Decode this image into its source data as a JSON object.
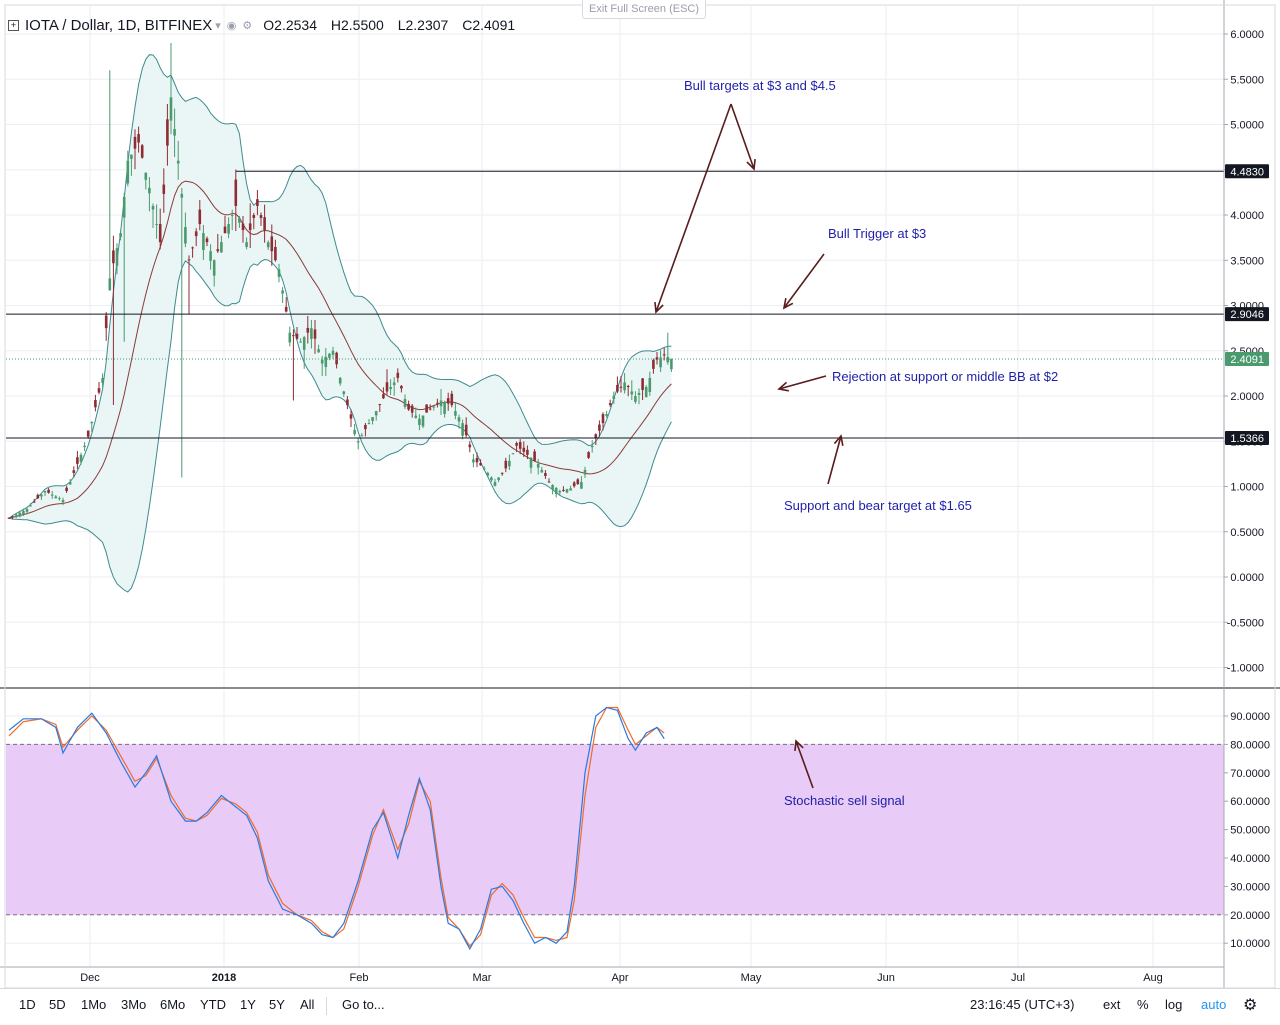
{
  "header": {
    "symbol": "IOTA / Dollar, 1D, BITFINEX",
    "open": "O2.2534",
    "high": "H2.5500",
    "low": "L2.2307",
    "close": "C2.4091"
  },
  "exit_fullscreen": "Exit Full Screen (ESC)",
  "bottom_bar": {
    "ranges": [
      "1D",
      "5D",
      "1Mo",
      "3Mo",
      "6Mo",
      "YTD",
      "1Y",
      "5Y",
      "All"
    ],
    "goto": "Go to...",
    "clock": "23:16:45 (UTC+3)",
    "ext": "ext",
    "percent": "%",
    "log": "log",
    "auto": "auto"
  },
  "colors": {
    "up": "#4a9a6e",
    "down": "#8e2b33",
    "band_fill": "#eaf6f6",
    "band_line": "#3f8a90",
    "basis": "#8b3a3a",
    "stoch_k": "#2a7ae0",
    "stoch_d": "#ef6c2a",
    "stoch_zone": "#e8cbf7",
    "annotation_text": "#1f1fa8",
    "arrow": "#5a1c1c"
  },
  "chart_data": [
    {
      "type": "candlestick",
      "title": "IOTA / Dollar, 1D, BITFINEX",
      "x_ticks": [
        "Dec",
        "2018",
        "Feb",
        "Mar",
        "Apr",
        "May",
        "Jun",
        "Jul",
        "Aug"
      ],
      "y_ticks": [
        "6.0000",
        "5.5000",
        "5.0000",
        "4.5000",
        "4.0000",
        "3.5000",
        "3.0000",
        "2.5000",
        "2.0000",
        "1.5000",
        "1.0000",
        "0.5000",
        "0.0000",
        "-0.5000",
        "-1.0000"
      ],
      "ylim": [
        -1.2,
        6.3
      ],
      "horizontal_lines": [
        {
          "value": 4.483,
          "label": "4.4830"
        },
        {
          "value": 2.9046,
          "label": "2.9046"
        },
        {
          "value": 1.5366,
          "label": "1.5366"
        }
      ],
      "last_price": {
        "value": 2.4091,
        "label": "2.4091"
      },
      "annotations": [
        {
          "text": "Bull targets at $3 and $4.5"
        },
        {
          "text": "Bull Trigger at $3"
        },
        {
          "text": "Rejection at support or middle BB at $2"
        },
        {
          "text": "Support and bear target at $1.65"
        }
      ],
      "indicators": [
        "Bollinger Bands (20)"
      ],
      "key_path": [
        [
          0,
          0.65
        ],
        [
          5,
          0.75
        ],
        [
          10,
          0.95
        ],
        [
          15,
          0.85
        ],
        [
          22,
          1.55
        ],
        [
          26,
          2.2
        ],
        [
          28,
          3.3
        ],
        [
          31,
          3.8
        ],
        [
          33,
          4.6
        ],
        [
          36,
          4.8
        ],
        [
          39,
          4.3
        ],
        [
          42,
          3.7
        ],
        [
          45,
          5.3
        ],
        [
          47,
          4.6
        ],
        [
          50,
          3.5
        ],
        [
          53,
          3.9
        ],
        [
          57,
          3.5
        ],
        [
          60,
          3.8
        ],
        [
          63,
          4.1
        ],
        [
          66,
          3.7
        ],
        [
          69,
          4.1
        ],
        [
          72,
          3.7
        ],
        [
          75,
          3.4
        ],
        [
          78,
          2.7
        ],
        [
          81,
          2.6
        ],
        [
          84,
          2.75
        ],
        [
          87,
          2.4
        ],
        [
          90,
          2.5
        ],
        [
          92,
          2.2
        ],
        [
          95,
          1.75
        ],
        [
          97,
          1.5
        ],
        [
          100,
          1.7
        ],
        [
          103,
          1.9
        ],
        [
          105,
          2.05
        ],
        [
          108,
          2.2
        ],
        [
          111,
          1.85
        ],
        [
          114,
          1.75
        ],
        [
          117,
          1.85
        ],
        [
          120,
          1.95
        ],
        [
          123,
          1.9
        ],
        [
          126,
          1.7
        ],
        [
          129,
          1.3
        ],
        [
          132,
          1.2
        ],
        [
          135,
          1.05
        ],
        [
          138,
          1.2
        ],
        [
          141,
          1.45
        ],
        [
          144,
          1.35
        ],
        [
          147,
          1.25
        ],
        [
          150,
          1.05
        ],
        [
          153,
          0.95
        ],
        [
          156,
          0.98
        ],
        [
          159,
          1.05
        ],
        [
          162,
          1.45
        ],
        [
          165,
          1.7
        ],
        [
          168,
          2.0
        ],
        [
          171,
          2.15
        ],
        [
          174,
          2.0
        ],
        [
          177,
          2.1
        ],
        [
          180,
          2.4
        ],
        [
          182,
          2.45
        ],
        [
          184,
          2.41
        ]
      ]
    },
    {
      "type": "line",
      "title": "Stochastic",
      "y_ticks": [
        "90.0000",
        "80.0000",
        "70.0000",
        "60.0000",
        "50.0000",
        "40.0000",
        "30.0000",
        "20.0000",
        "10.0000"
      ],
      "ylim": [
        2,
        100
      ],
      "levels": [
        80,
        20
      ],
      "annotations": [
        {
          "text": "Stochastic sell signal"
        }
      ],
      "series": [
        {
          "values_path": [
            [
              0,
              85
            ],
            [
              4,
              89
            ],
            [
              9,
              89
            ],
            [
              13,
              86
            ],
            [
              15,
              77
            ],
            [
              19,
              86
            ],
            [
              23,
              91
            ],
            [
              27,
              84
            ],
            [
              31,
              74
            ],
            [
              35,
              65
            ],
            [
              38,
              70
            ],
            [
              41,
              76
            ],
            [
              45,
              60
            ],
            [
              49,
              53
            ],
            [
              52,
              53
            ],
            [
              55,
              56
            ],
            [
              59,
              62
            ],
            [
              63,
              58
            ],
            [
              66,
              55
            ],
            [
              69,
              47
            ],
            [
              72,
              32
            ],
            [
              76,
              22
            ],
            [
              80,
              20
            ],
            [
              84,
              17
            ],
            [
              87,
              13
            ],
            [
              90,
              12
            ],
            [
              93,
              17
            ],
            [
              97,
              32
            ],
            [
              101,
              50
            ],
            [
              104,
              56
            ],
            [
              108,
              40
            ],
            [
              111,
              55
            ],
            [
              114,
              68
            ],
            [
              117,
              57
            ],
            [
              120,
              30
            ],
            [
              122,
              17
            ],
            [
              125,
              15
            ],
            [
              128,
              8
            ],
            [
              131,
              15
            ],
            [
              134,
              29
            ],
            [
              137,
              30
            ],
            [
              140,
              25
            ],
            [
              143,
              17
            ],
            [
              146,
              10
            ],
            [
              149,
              12
            ],
            [
              152,
              10
            ],
            [
              155,
              14
            ],
            [
              157,
              30
            ],
            [
              160,
              70
            ],
            [
              163,
              90
            ],
            [
              166,
              93
            ],
            [
              169,
              92
            ],
            [
              172,
              82
            ],
            [
              174,
              78
            ],
            [
              177,
              84
            ],
            [
              180,
              86
            ],
            [
              182,
              82
            ]
          ]
        },
        {
          "values_path": [
            [
              0,
              83
            ],
            [
              4,
              88
            ],
            [
              9,
              89
            ],
            [
              13,
              87
            ],
            [
              15,
              79
            ],
            [
              19,
              85
            ],
            [
              23,
              90
            ],
            [
              27,
              85
            ],
            [
              31,
              76
            ],
            [
              35,
              67
            ],
            [
              38,
              69
            ],
            [
              41,
              75
            ],
            [
              45,
              62
            ],
            [
              49,
              54
            ],
            [
              52,
              53
            ],
            [
              55,
              55
            ],
            [
              59,
              61
            ],
            [
              63,
              59
            ],
            [
              66,
              56
            ],
            [
              69,
              49
            ],
            [
              72,
              34
            ],
            [
              76,
              24
            ],
            [
              80,
              20
            ],
            [
              84,
              18
            ],
            [
              87,
              14
            ],
            [
              90,
              12
            ],
            [
              93,
              15
            ],
            [
              97,
              30
            ],
            [
              101,
              48
            ],
            [
              104,
              57
            ],
            [
              108,
              43
            ],
            [
              111,
              52
            ],
            [
              114,
              67
            ],
            [
              117,
              60
            ],
            [
              120,
              33
            ],
            [
              122,
              19
            ],
            [
              125,
              15
            ],
            [
              128,
              9
            ],
            [
              131,
              13
            ],
            [
              134,
              27
            ],
            [
              137,
              31
            ],
            [
              140,
              27
            ],
            [
              143,
              19
            ],
            [
              146,
              12
            ],
            [
              149,
              12
            ],
            [
              152,
              11
            ],
            [
              155,
              12
            ],
            [
              157,
              25
            ],
            [
              160,
              62
            ],
            [
              163,
              86
            ],
            [
              166,
              93
            ],
            [
              169,
              93
            ],
            [
              172,
              85
            ],
            [
              174,
              80
            ],
            [
              177,
              83
            ],
            [
              180,
              86
            ],
            [
              182,
              84
            ]
          ]
        }
      ]
    }
  ]
}
